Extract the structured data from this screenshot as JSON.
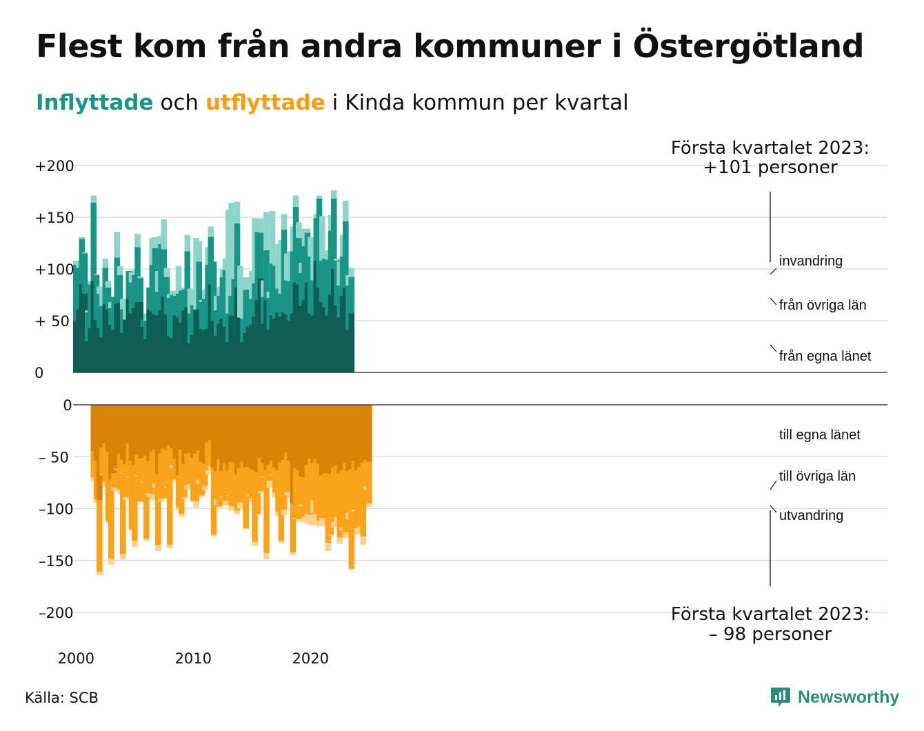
{
  "title": "Flest kom från andra kommuner i Östergötland",
  "subtitle": {
    "in_word": "Inflyttade",
    "mid": " och ",
    "out_word": "utflyttade",
    "rest": " i Kinda kommun per kvartal"
  },
  "source": "Källa: SCB",
  "brand": "Newsworthy",
  "colors": {
    "in_egna": "#0e5e55",
    "in_ovriga": "#1a9487",
    "in_invandring": "#8dd5cb",
    "out_egna": "#d98205",
    "out_ovriga": "#f9a31d",
    "out_utvandring": "#fbd28d",
    "brand": "#2e8b7a"
  },
  "chart_data": {
    "type": "bar",
    "stacked": true,
    "x_ticks": [
      "2000",
      "2010",
      "2020"
    ],
    "start_year": 2000,
    "upper": {
      "yticks": [
        "+200",
        "+150",
        "+100",
        "+ 50",
        "0"
      ],
      "ylim": [
        0,
        200
      ],
      "grid": true,
      "total_annotation": [
        "Första kvartalet 2023:",
        "+101 personer"
      ],
      "series": [
        {
          "name": "från egna länet",
          "values": [
            50,
            61,
            85,
            76,
            30,
            43,
            88,
            51,
            43,
            34,
            66,
            61,
            46,
            41,
            67,
            67,
            38,
            51,
            71,
            57,
            62,
            68,
            68,
            44,
            32,
            61,
            59,
            56,
            55,
            60,
            73,
            56,
            35,
            33,
            55,
            53,
            48,
            60,
            63,
            28,
            36,
            60,
            61,
            42,
            41,
            42,
            85,
            50,
            35,
            47,
            52,
            44,
            29,
            55,
            55,
            82,
            53,
            29,
            38,
            44,
            46,
            54,
            70,
            91,
            47,
            70,
            41,
            55,
            52,
            58,
            54,
            58,
            56,
            50,
            57,
            87,
            85,
            64,
            70,
            87,
            57,
            55,
            108,
            82,
            68,
            63,
            55,
            75,
            100,
            65,
            53,
            74,
            82,
            41,
            57
          ]
        },
        {
          "name": "från övriga län",
          "values": [
            54,
            40,
            44,
            39,
            28,
            42,
            76,
            43,
            33,
            30,
            35,
            21,
            16,
            32,
            44,
            27,
            23,
            0,
            27,
            30,
            32,
            53,
            23,
            7,
            18,
            21,
            45,
            64,
            23,
            64,
            46,
            36,
            37,
            42,
            19,
            23,
            31,
            20,
            54,
            29,
            29,
            1,
            46,
            26,
            30,
            62,
            46,
            57,
            25,
            27,
            40,
            55,
            28,
            19,
            35,
            62,
            0,
            23,
            42,
            25,
            25,
            32,
            66,
            44,
            26,
            48,
            31,
            50,
            51,
            23,
            22,
            80,
            33,
            38,
            60,
            73,
            45,
            32,
            52,
            48,
            55,
            34,
            41,
            86,
            40,
            47,
            54,
            62,
            68,
            43,
            31,
            38,
            64,
            43,
            35
          ]
        },
        {
          "name": "invandring",
          "values": [
            4,
            6,
            2,
            1,
            2,
            3,
            7,
            1,
            7,
            16,
            9,
            6,
            6,
            0,
            25,
            9,
            10,
            10,
            0,
            10,
            5,
            13,
            2,
            0,
            7,
            0,
            26,
            11,
            20,
            8,
            29,
            9,
            4,
            4,
            2,
            27,
            3,
            2,
            16,
            24,
            15,
            69,
            20,
            2,
            9,
            17,
            10,
            0,
            14,
            9,
            8,
            11,
            100,
            90,
            30,
            21,
            50,
            18,
            12,
            0,
            27,
            63,
            12,
            14,
            16,
            37,
            6,
            51,
            2,
            43,
            52,
            15,
            26,
            29,
            24,
            11,
            15,
            10,
            17,
            4,
            19,
            25,
            4,
            3,
            43,
            3,
            9,
            15,
            8,
            2,
            23,
            21,
            20,
            10,
            9
          ]
        }
      ]
    },
    "lower": {
      "yticks": [
        "0",
        "– 50",
        "–100",
        "–150",
        "–200"
      ],
      "ylim": [
        -200,
        0
      ],
      "grid": true,
      "total_annotation": [
        "Första kvartalet 2023:",
        "– 98 personer"
      ],
      "series": [
        {
          "name": "till egna länet",
          "values": [
            -45,
            -54,
            -92,
            -41,
            -37,
            -45,
            -72,
            -66,
            -61,
            -47,
            -53,
            -57,
            -37,
            -54,
            -58,
            -48,
            -52,
            -51,
            -49,
            -54,
            -45,
            -43,
            -67,
            -47,
            -42,
            -44,
            -39,
            -42,
            -52,
            -68,
            -43,
            -57,
            -47,
            -46,
            -51,
            -47,
            -44,
            -55,
            -57,
            -36,
            -34,
            -61,
            -64,
            -52,
            -64,
            -56,
            -64,
            -55,
            -56,
            -67,
            -61,
            -55,
            -60,
            -60,
            -62,
            -63,
            -65,
            -51,
            -56,
            -63,
            -58,
            -54,
            -60,
            -63,
            -56,
            -53,
            -46,
            -54,
            -95,
            -61,
            -63,
            -69,
            -70,
            -58,
            -52,
            -56,
            -52,
            -57,
            -68,
            -66,
            -66,
            -67,
            -60,
            -58,
            -66,
            -63,
            -56,
            -64,
            -62,
            -54,
            -63,
            -60,
            -56,
            -53,
            -55
          ]
        },
        {
          "name": "till övriga län",
          "values": [
            -25,
            -37,
            -69,
            -26,
            -37,
            -67,
            -76,
            -14,
            -1,
            -35,
            -91,
            -32,
            -32,
            -66,
            -73,
            -20,
            -41,
            -23,
            -80,
            -31,
            -41,
            -33,
            -68,
            -43,
            -48,
            -35,
            -96,
            -16,
            -20,
            -31,
            -62,
            -32,
            -30,
            -30,
            -41,
            -46,
            -28,
            -32,
            -21,
            -27,
            -25,
            -64,
            -27,
            -46,
            -24,
            -37,
            -23,
            -42,
            -42,
            -35,
            -33,
            -39,
            -59,
            -26,
            -28,
            -69,
            -40,
            -32,
            -13,
            -80,
            -15,
            -13,
            -25,
            -40,
            -75,
            -48,
            -38,
            -30,
            -47,
            -48,
            -47,
            -27,
            -38,
            -47,
            -54,
            -36,
            -53,
            -55,
            -41,
            -43,
            -67,
            -58,
            -53,
            -50,
            -62,
            -55,
            -67,
            -40,
            -96,
            -47,
            -56,
            -57,
            -71,
            -26,
            -40
          ]
        },
        {
          "name": "utvandring",
          "values": [
            -4,
            -3,
            -3,
            -1,
            -5,
            -2,
            -6,
            -3,
            -1,
            -4,
            -5,
            -3,
            -1,
            -1,
            -6,
            -1,
            -1,
            -1,
            -2,
            -4,
            -6,
            -4,
            -6,
            -3,
            -1,
            -1,
            -3,
            -3,
            -2,
            -2,
            -3,
            -2,
            -4,
            -1,
            -2,
            -6,
            -4,
            -2,
            -4,
            -4,
            -5,
            -2,
            -6,
            -1,
            -1,
            -4,
            -1,
            -5,
            -1,
            -3,
            -6,
            -2,
            -1,
            -2,
            -4,
            -4,
            -1,
            -2,
            -1,
            -6,
            -7,
            -1,
            -4,
            -4,
            -2,
            -5,
            -3,
            -6,
            -3,
            -1,
            -3,
            -2,
            -5,
            -9,
            -10,
            -12,
            -11,
            -5,
            -6,
            -8,
            -8,
            -1,
            -5,
            -6,
            -6,
            -3,
            -5,
            -6,
            -1,
            -2,
            -6,
            -2,
            -8,
            -3,
            -3
          ]
        }
      ]
    }
  }
}
